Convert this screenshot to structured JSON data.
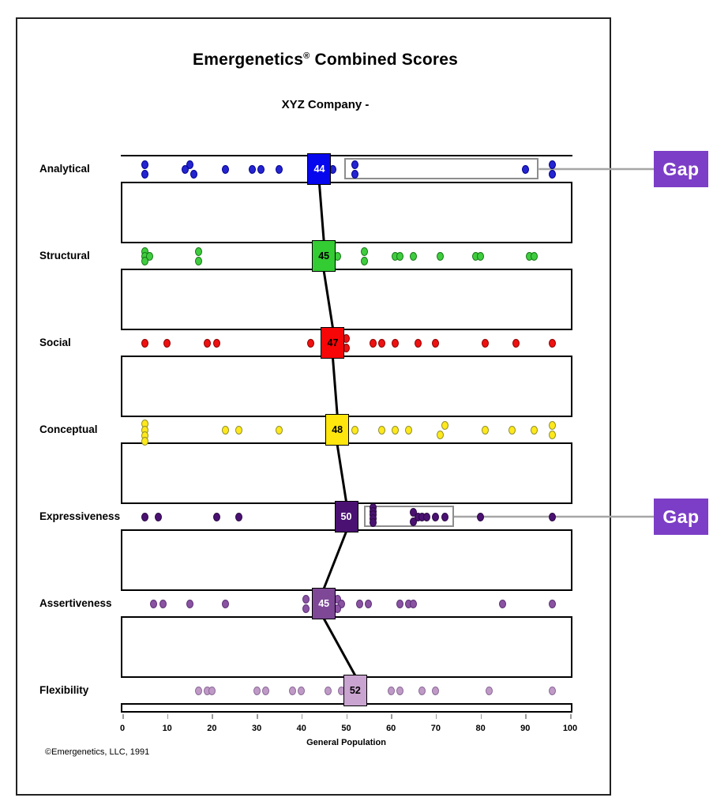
{
  "header": {
    "title_brand": "Emergenetics",
    "registered": "®",
    "title_rest": " Combined Scores",
    "subtitle": "XYZ Company -"
  },
  "footer": {
    "copyright": "©Emergenetics, LLC, 1991"
  },
  "axis": {
    "min": 0,
    "max": 100,
    "ticks": [
      0,
      10,
      20,
      30,
      40,
      50,
      60,
      70,
      80,
      90,
      100
    ],
    "label": "General Population"
  },
  "colors": {
    "gap_callout_bg": "#7c3ec6",
    "gap_connector": "#a6a6a6",
    "median_line": "#000000",
    "gap_rect_border": "#8d8d8d"
  },
  "chart_data": {
    "type": "strip-dot",
    "title": "Emergenetics® Combined Scores",
    "subtitle": "XYZ Company -",
    "xlabel": "General Population",
    "xlim": [
      0,
      100
    ],
    "rows": [
      {
        "label": "Analytical",
        "median": 44,
        "box_color": "#0707ee",
        "box_text_color": "#ffffff",
        "dot_fill": "#2424d0",
        "dot_stroke": "#000090",
        "dots": [
          [
            5,
            "t"
          ],
          [
            5,
            "b"
          ],
          [
            15,
            "t"
          ],
          [
            14,
            "m"
          ],
          [
            16,
            "b"
          ],
          [
            23,
            "m"
          ],
          [
            29,
            "m"
          ],
          [
            31,
            "m"
          ],
          [
            35,
            "m"
          ],
          [
            47,
            "m"
          ],
          [
            52,
            "t"
          ],
          [
            52,
            "b"
          ],
          [
            90,
            "m"
          ],
          [
            96,
            "t"
          ],
          [
            96,
            "b"
          ]
        ]
      },
      {
        "label": "Structural",
        "median": 45,
        "box_color": "#33cc33",
        "box_text_color": "#000000",
        "dot_fill": "#3fcc3f",
        "dot_stroke": "#157815",
        "dots": [
          [
            5,
            "t"
          ],
          [
            5,
            "m"
          ],
          [
            6,
            "m"
          ],
          [
            5,
            "b"
          ],
          [
            17,
            "t"
          ],
          [
            17,
            "b"
          ],
          [
            48,
            "m"
          ],
          [
            54,
            "t"
          ],
          [
            54,
            "b"
          ],
          [
            61,
            "m"
          ],
          [
            62,
            "m"
          ],
          [
            65,
            "m"
          ],
          [
            71,
            "m"
          ],
          [
            79,
            "m"
          ],
          [
            80,
            "m"
          ],
          [
            91,
            "m"
          ],
          [
            92,
            "m"
          ]
        ]
      },
      {
        "label": "Social",
        "median": 47,
        "box_color": "#f60606",
        "box_text_color": "#000000",
        "dot_fill": "#ee1111",
        "dot_stroke": "#8e0000",
        "dots": [
          [
            5,
            "m"
          ],
          [
            10,
            "m"
          ],
          [
            19,
            "m"
          ],
          [
            21,
            "m"
          ],
          [
            42,
            "m"
          ],
          [
            50,
            "t"
          ],
          [
            50,
            "b"
          ],
          [
            56,
            "m"
          ],
          [
            58,
            "m"
          ],
          [
            61,
            "m"
          ],
          [
            66,
            "m"
          ],
          [
            70,
            "m"
          ],
          [
            81,
            "m"
          ],
          [
            88,
            "m"
          ],
          [
            96,
            "m"
          ]
        ]
      },
      {
        "label": "Conceptual",
        "median": 48,
        "box_color": "#ffe70d",
        "box_text_color": "#000000",
        "dot_fill": "#ffe81c",
        "dot_stroke": "#8f8f2a",
        "dots": [
          [
            5,
            0.28
          ],
          [
            5,
            0.5
          ],
          [
            5,
            0.7
          ],
          [
            5,
            0.9
          ],
          [
            23,
            "m"
          ],
          [
            26,
            "m"
          ],
          [
            35,
            "m"
          ],
          [
            52,
            "m"
          ],
          [
            58,
            "m"
          ],
          [
            61,
            "m"
          ],
          [
            64,
            "m"
          ],
          [
            72,
            "t"
          ],
          [
            71,
            "b"
          ],
          [
            81,
            "m"
          ],
          [
            87,
            "m"
          ],
          [
            92,
            "m"
          ],
          [
            96,
            "t"
          ],
          [
            96,
            "b"
          ]
        ]
      },
      {
        "label": "Expressiveness",
        "median": 50,
        "box_color": "#4a1172",
        "box_text_color": "#ffffff",
        "dot_fill": "#4a1172",
        "dot_stroke": "#2c0a45",
        "dots": [
          [
            5,
            "m"
          ],
          [
            8,
            "m"
          ],
          [
            21,
            "m"
          ],
          [
            26,
            "m"
          ],
          [
            56,
            0.18
          ],
          [
            56,
            0.31
          ],
          [
            56,
            0.44
          ],
          [
            56,
            0.57
          ],
          [
            56,
            0.7
          ],
          [
            65,
            "t"
          ],
          [
            65,
            "b"
          ],
          [
            66,
            "m"
          ],
          [
            67,
            "m"
          ],
          [
            68,
            "m"
          ],
          [
            70,
            "m"
          ],
          [
            72,
            "m"
          ],
          [
            80,
            "m"
          ],
          [
            96,
            "m"
          ]
        ]
      },
      {
        "label": "Assertiveness",
        "median": 45,
        "box_color": "#7e4897",
        "box_text_color": "#ffffff",
        "dot_fill": "#8a52a2",
        "dot_stroke": "#5b2f75",
        "dots": [
          [
            7,
            "m"
          ],
          [
            9,
            "m"
          ],
          [
            15,
            "m"
          ],
          [
            23,
            "m"
          ],
          [
            41,
            "t"
          ],
          [
            41,
            "b"
          ],
          [
            48,
            "t"
          ],
          [
            49,
            "m"
          ],
          [
            48,
            "b"
          ],
          [
            53,
            "m"
          ],
          [
            55,
            "m"
          ],
          [
            62,
            "m"
          ],
          [
            64,
            "m"
          ],
          [
            65,
            "m"
          ],
          [
            85,
            "m"
          ],
          [
            96,
            "m"
          ]
        ]
      },
      {
        "label": "Flexibility",
        "median": 52,
        "box_color": "#c9a4d0",
        "box_text_color": "#000000",
        "dot_fill": "#c09ac6",
        "dot_stroke": "#8a6898",
        "dots": [
          [
            17,
            "m"
          ],
          [
            19,
            "m"
          ],
          [
            20,
            "m"
          ],
          [
            30,
            "m"
          ],
          [
            32,
            "m"
          ],
          [
            38,
            "m"
          ],
          [
            40,
            "m"
          ],
          [
            46,
            "m"
          ],
          [
            49,
            "m"
          ],
          [
            60,
            "m"
          ],
          [
            62,
            "m"
          ],
          [
            67,
            "m"
          ],
          [
            70,
            "m"
          ],
          [
            82,
            "m"
          ],
          [
            96,
            "m"
          ]
        ]
      }
    ],
    "gap_callouts": [
      {
        "row_index": 0,
        "label": "Gap",
        "from": 49.5,
        "to": 93
      },
      {
        "row_index": 4,
        "label": "Gap",
        "from": 54,
        "to": 74
      }
    ]
  }
}
